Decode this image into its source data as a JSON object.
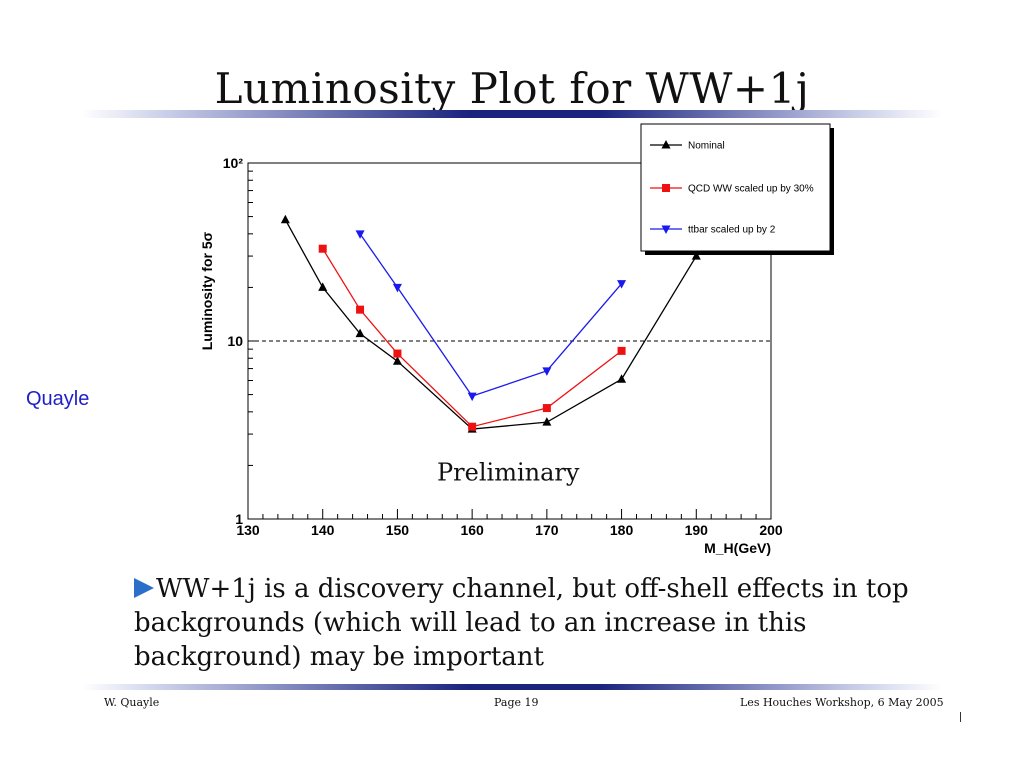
{
  "slide": {
    "title": "Luminosity Plot for WW+1j",
    "side_label": "Quayle",
    "bullet_text": "WW+1j is a discovery channel, but off-shell effects in top backgrounds (which will lead to an increase in this background) may be important",
    "footer_left": "W. Quayle",
    "footer_center": "Page 19",
    "footer_right": "Les Houches Workshop, 6 May 2005",
    "accent_color": "#1a237e",
    "side_label_color": "#1f1fc8",
    "bullet_color": "#2a6fc9"
  },
  "chart_data": {
    "type": "line",
    "title": "",
    "xlabel": "M_H(GeV)",
    "ylabel": "Luminosity for 5σ",
    "xlim": [
      130,
      200
    ],
    "ylim": [
      1,
      100
    ],
    "yscale": "log",
    "xticks": [
      "130",
      "140",
      "150",
      "160",
      "170",
      "180",
      "190",
      "200"
    ],
    "yticks": [
      "1",
      "10",
      "10²"
    ],
    "annotation": "Preliminary",
    "reference_line": 10,
    "legend_position": "top-right",
    "series": [
      {
        "name": "Nominal",
        "color": "#000000",
        "marker": "triangle-up",
        "x": [
          135,
          140,
          145,
          150,
          160,
          170,
          180,
          190
        ],
        "y": [
          48,
          20,
          11,
          7.7,
          3.2,
          3.5,
          6.1,
          30
        ]
      },
      {
        "name": "QCD WW scaled up by 30%",
        "color": "#ee1111",
        "marker": "square",
        "x": [
          140,
          145,
          150,
          160,
          170,
          180
        ],
        "y": [
          33,
          15,
          8.5,
          3.3,
          4.2,
          8.8
        ]
      },
      {
        "name": "ttbar scaled up by 2",
        "color": "#1a1aee",
        "marker": "triangle-down",
        "x": [
          145,
          150,
          160,
          170,
          180
        ],
        "y": [
          40,
          20,
          4.9,
          6.8,
          21
        ]
      }
    ]
  }
}
